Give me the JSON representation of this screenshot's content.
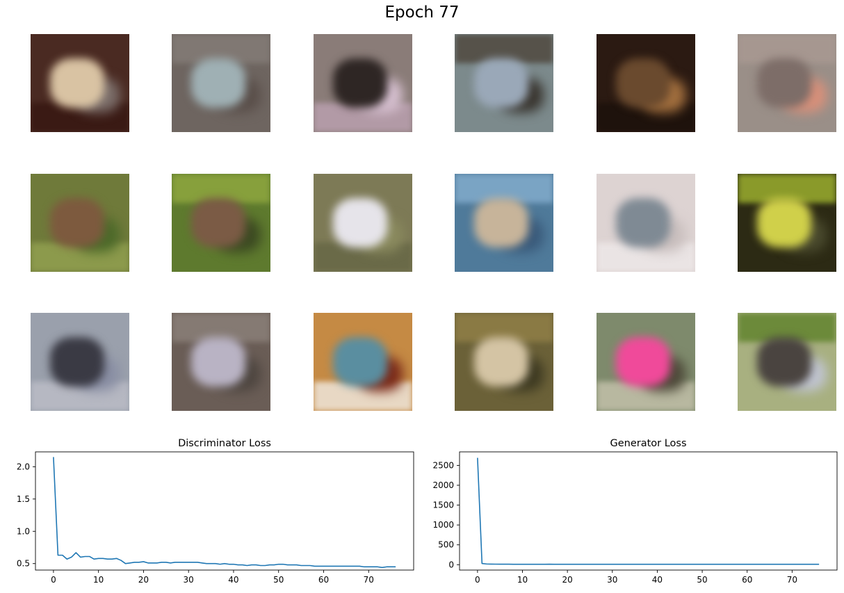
{
  "figure": {
    "title": "Epoch 77"
  },
  "samples": [
    {
      "bg": "#4a2a22",
      "a": "#d9c3a3",
      "b": "#7b6e6a",
      "band": "#3a1a14"
    },
    {
      "bg": "#6e6560",
      "a": "#9fb0b4",
      "b": "#5a4f4a",
      "band": "#807873"
    },
    {
      "bg": "#8a7c78",
      "a": "#2e2624",
      "b": "#d6c0d0",
      "band": "#b29aa6"
    },
    {
      "bg": "#7c8a8c",
      "a": "#9aa8b8",
      "b": "#3a3630",
      "band": "#56524a"
    },
    {
      "bg": "#2b1a12",
      "a": "#6a4a2e",
      "b": "#a26f3e",
      "band": "#1e120c"
    },
    {
      "bg": "#9a8f88",
      "a": "#7d6d68",
      "b": "#d8907a",
      "band": "#a69790"
    },
    {
      "bg": "#6f7a3a",
      "a": "#7d5a3e",
      "b": "#4d6a2a",
      "band": "#8c9a4c"
    },
    {
      "bg": "#5e7a2e",
      "a": "#7b5b45",
      "b": "#3c4a22",
      "band": "#87a03c"
    },
    {
      "bg": "#7d7a56",
      "a": "#e6e4ea",
      "b": "#8a8a5e",
      "band": "#6a6a48"
    },
    {
      "bg": "#4f7a9a",
      "a": "#c7b49a",
      "b": "#3a5a7a",
      "band": "#7aa4c4"
    },
    {
      "bg": "#ddd3d2",
      "a": "#7f8a94",
      "b": "#c9bfbe",
      "band": "#eae4e4"
    },
    {
      "bg": "#2c2a14",
      "a": "#d0d04a",
      "b": "#4a4a2e",
      "band": "#8a9a2a"
    },
    {
      "bg": "#9aa0ac",
      "a": "#3a3a44",
      "b": "#8a8fa4",
      "band": "#b6b8c2"
    },
    {
      "bg": "#6a5d56",
      "a": "#b9b3c4",
      "b": "#4e4640",
      "band": "#857a73"
    },
    {
      "bg": "#c58a44",
      "a": "#5a8ea0",
      "b": "#7a2a1a",
      "band": "#e8d8c4"
    },
    {
      "bg": "#6b6138",
      "a": "#d4c4a4",
      "b": "#3e3a22",
      "band": "#8a7a44"
    },
    {
      "bg": "#7e8a6c",
      "a": "#f04a9a",
      "b": "#4e4a3a",
      "band": "#b8b8a0"
    },
    {
      "bg": "#a8b080",
      "a": "#4a4440",
      "b": "#c0c4d0",
      "band": "#6c8a3a"
    }
  ],
  "chart_data": [
    {
      "type": "line",
      "title": "Discriminator Loss",
      "xlabel": "",
      "ylabel": "",
      "xlim": [
        -4,
        80
      ],
      "ylim": [
        0.4,
        2.23
      ],
      "xticks": [
        0,
        10,
        20,
        30,
        40,
        50,
        60,
        70
      ],
      "yticks": [
        0.5,
        1.0,
        1.5,
        2.0
      ],
      "ytick_labels": [
        "0.5",
        "1.0",
        "1.5",
        "2.0"
      ],
      "color": "#1f77b4",
      "x": [
        0,
        1,
        2,
        3,
        4,
        5,
        6,
        7,
        8,
        9,
        10,
        11,
        12,
        13,
        14,
        15,
        16,
        17,
        18,
        19,
        20,
        21,
        22,
        23,
        24,
        25,
        26,
        27,
        28,
        29,
        30,
        31,
        32,
        33,
        34,
        35,
        36,
        37,
        38,
        39,
        40,
        41,
        42,
        43,
        44,
        45,
        46,
        47,
        48,
        49,
        50,
        51,
        52,
        53,
        54,
        55,
        56,
        57,
        58,
        59,
        60,
        61,
        62,
        63,
        64,
        65,
        66,
        67,
        68,
        69,
        70,
        71,
        72,
        73,
        74,
        75,
        76
      ],
      "y": [
        2.15,
        0.63,
        0.63,
        0.57,
        0.6,
        0.67,
        0.6,
        0.61,
        0.61,
        0.57,
        0.58,
        0.58,
        0.57,
        0.57,
        0.58,
        0.55,
        0.5,
        0.51,
        0.52,
        0.52,
        0.53,
        0.51,
        0.51,
        0.51,
        0.52,
        0.52,
        0.51,
        0.52,
        0.52,
        0.52,
        0.52,
        0.52,
        0.52,
        0.51,
        0.5,
        0.5,
        0.5,
        0.49,
        0.5,
        0.49,
        0.49,
        0.48,
        0.48,
        0.47,
        0.48,
        0.48,
        0.47,
        0.47,
        0.48,
        0.48,
        0.49,
        0.49,
        0.48,
        0.48,
        0.48,
        0.47,
        0.47,
        0.47,
        0.46,
        0.46,
        0.46,
        0.46,
        0.46,
        0.46,
        0.46,
        0.46,
        0.46,
        0.46,
        0.46,
        0.45,
        0.45,
        0.45,
        0.45,
        0.44,
        0.45,
        0.45,
        0.45
      ]
    },
    {
      "type": "line",
      "title": "Generator Loss",
      "xlabel": "",
      "ylabel": "",
      "xlim": [
        -4,
        80
      ],
      "ylim": [
        -135,
        2840
      ],
      "xticks": [
        0,
        10,
        20,
        30,
        40,
        50,
        60,
        70
      ],
      "yticks": [
        0,
        500,
        1000,
        1500,
        2000,
        2500
      ],
      "ytick_labels": [
        "0",
        "500",
        "1000",
        "1500",
        "2000",
        "2500"
      ],
      "color": "#1f77b4",
      "x": [
        0,
        1,
        2,
        3,
        4,
        5,
        6,
        7,
        8,
        9,
        10,
        11,
        12,
        13,
        14,
        15,
        16,
        17,
        18,
        19,
        20,
        21,
        22,
        23,
        24,
        25,
        26,
        27,
        28,
        29,
        30,
        31,
        32,
        33,
        34,
        35,
        36,
        37,
        38,
        39,
        40,
        41,
        42,
        43,
        44,
        45,
        46,
        47,
        48,
        49,
        50,
        51,
        52,
        53,
        54,
        55,
        56,
        57,
        58,
        59,
        60,
        61,
        62,
        63,
        64,
        65,
        66,
        67,
        68,
        69,
        70,
        71,
        72,
        73,
        74,
        75,
        76
      ],
      "y": [
        2690,
        30,
        18,
        15,
        14,
        13,
        12,
        12,
        11,
        11,
        11,
        10,
        10,
        10,
        10,
        10,
        12,
        10,
        10,
        10,
        10,
        10,
        10,
        10,
        10,
        10,
        10,
        10,
        10,
        10,
        10,
        10,
        10,
        10,
        10,
        10,
        10,
        10,
        10,
        10,
        10,
        10,
        10,
        10,
        10,
        10,
        10,
        10,
        10,
        10,
        10,
        10,
        10,
        10,
        10,
        10,
        10,
        10,
        10,
        10,
        10,
        10,
        10,
        10,
        10,
        10,
        10,
        10,
        10,
        10,
        10,
        10,
        10,
        10,
        10,
        10,
        10
      ]
    }
  ]
}
